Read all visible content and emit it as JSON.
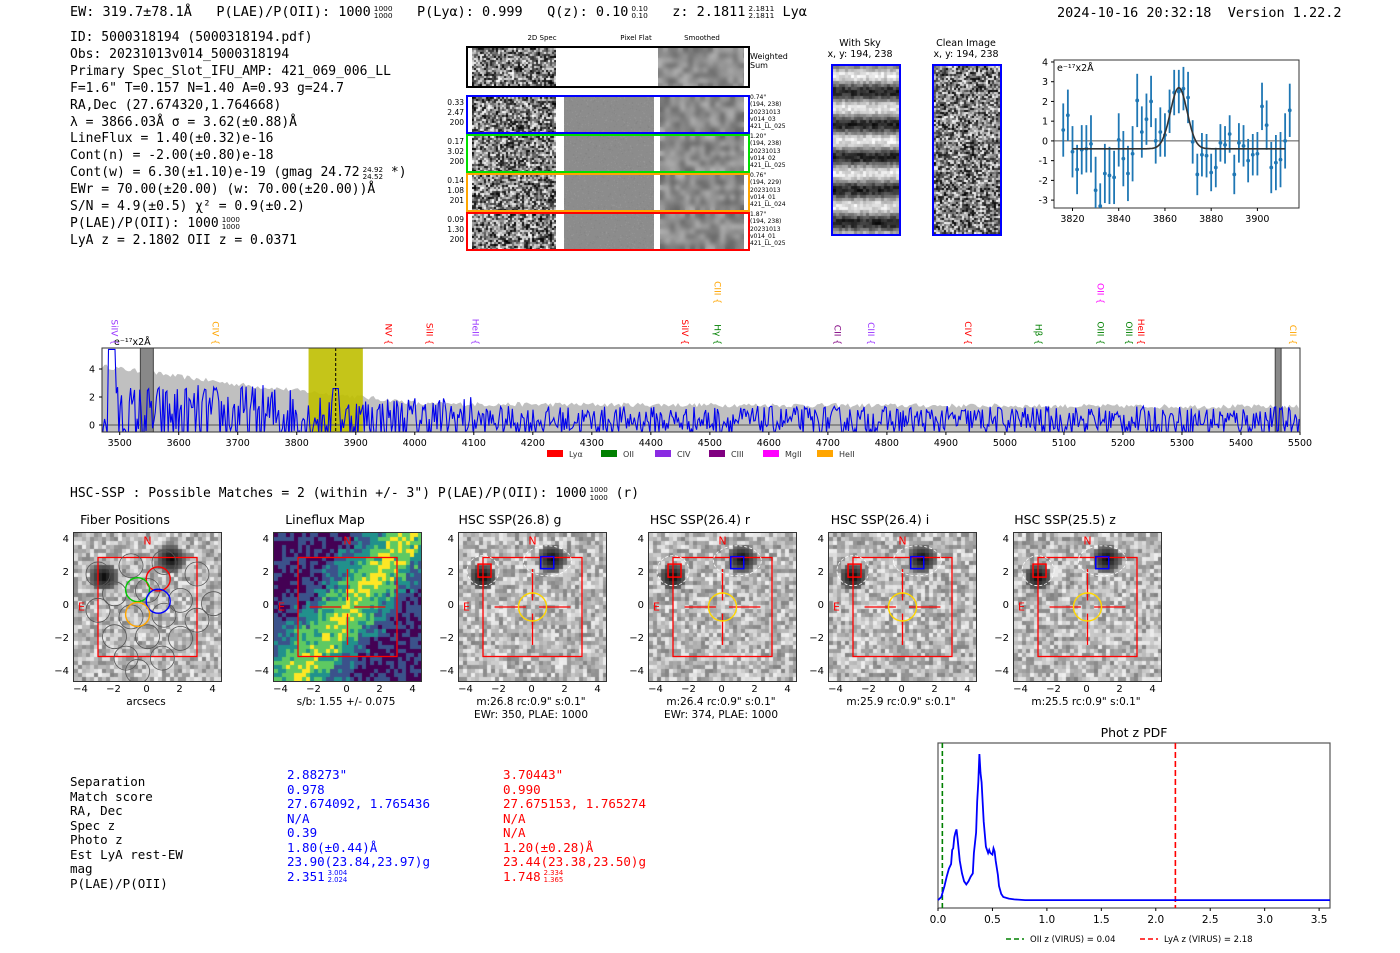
{
  "header": {
    "ew": "EW: 319.7±78.1Å",
    "plae_label": "P(LAE)/P(OII): 1000",
    "plae_hi": "1000",
    "plae_lo": "1000",
    "plya": "P(Lyα): 0.999",
    "qz_label": "Q(z): 0.10",
    "qz_hi": "0.10",
    "qz_lo": "0.10",
    "z_label": "z: 2.1811",
    "z_hi": "2.1811",
    "z_lo": "2.1811",
    "line": "Lyα",
    "timestamp": "2024-10-16 20:32:18",
    "version": "Version 1.22.2"
  },
  "info": {
    "id": "ID: 5000318194 (5000318194.pdf)",
    "obs": "Obs: 20231013v014_5000318194",
    "primary": "Primary Spec_Slot_IFU_AMP: 421_069_006_LL",
    "params": "F=1.6\"  T=0.157  N=1.40  A=0.93  g=24.7",
    "radec": "RA,Dec (27.674320,1.764668)",
    "lambda": "λ = 3866.03Å  σ = 3.62(±0.88)Å",
    "lineflux": "LineFlux = 1.40(±0.32)e-16",
    "cont_n": "Cont(n) = -2.00(±0.80)e-18",
    "cont_w": "Cont(w) = 6.30(±1.10)e-19 (gmag 24.72",
    "cont_w_hi": "24.92",
    "cont_w_lo": "24.52",
    "cont_w_tail": " *)",
    "ewr": "EWr = 70.00(±20.00) (w: 70.00(±20.00))Å",
    "sn": "S/N = 4.9(±0.5)  χ² = 0.9(±0.2)",
    "plae": "P(LAE)/P(OII): 1000",
    "plae_hi": "1000",
    "plae_lo": "1000",
    "z": "LyA z = 2.1802  OII z = 0.0371"
  },
  "spec2d": {
    "col_headers": [
      "2D Spec",
      "Pixel Flat",
      "Smoothed"
    ],
    "weighted_label": "Weighted Sum",
    "rows": [
      {
        "color": "#0000ff",
        "left": [
          "0.33",
          "2.47",
          "200"
        ],
        "right": [
          "0.74\"",
          "(194, 238)",
          "20231013",
          "v014_03",
          "421_LL_025"
        ]
      },
      {
        "color": "#00dd00",
        "left": [
          "0.17",
          "3.02",
          "200"
        ],
        "right": [
          "1.20\"",
          "(194, 238)",
          "20231013",
          "v014_02",
          "421_LL_025"
        ]
      },
      {
        "color": "#ffa500",
        "left": [
          "0.14",
          "1.08",
          "201"
        ],
        "right": [
          "0.76\"",
          "(194, 229)",
          "20231013",
          "v014_01",
          "421_LL_024"
        ]
      },
      {
        "color": "#ff0000",
        "left": [
          "0.09",
          "1.30",
          "200"
        ],
        "right": [
          "1.87\"",
          "(194, 238)",
          "20231013",
          "v014_01",
          "421_LL_025"
        ]
      }
    ]
  },
  "cutouts": {
    "with_sky_title": "With Sky",
    "with_sky_xy": "x, y: 194, 238",
    "clean_title": "Clean Image",
    "clean_xy": "x, y: 194, 238"
  },
  "zoom_plot": {
    "unit_label": "e⁻¹⁷x2Å",
    "chart_data": {
      "type": "scatter",
      "title": "",
      "xlabel": "",
      "ylabel": "",
      "xlim": [
        3812,
        3918
      ],
      "ylim": [
        -3.4,
        4.1
      ],
      "xticks": [
        3820,
        3840,
        3860,
        3880,
        3900
      ],
      "yticks": [
        -3,
        -2,
        -1,
        0,
        1,
        2,
        3,
        4
      ],
      "points": {
        "x": [
          3816,
          3818,
          3820,
          3822,
          3824,
          3826,
          3828,
          3830,
          3832,
          3834,
          3836,
          3838,
          3840,
          3842,
          3844,
          3846,
          3848,
          3850,
          3852,
          3854,
          3856,
          3858,
          3860,
          3862,
          3864,
          3866,
          3868,
          3870,
          3872,
          3874,
          3876,
          3878,
          3880,
          3882,
          3884,
          3886,
          3888,
          3890,
          3892,
          3894,
          3896,
          3898,
          3900,
          3902,
          3904,
          3906,
          3908,
          3910,
          3912,
          3914
        ],
        "y": [
          0.55,
          1.3,
          -0.55,
          -1.45,
          -0.45,
          -0.4,
          -0.15,
          -2.5,
          -3.3,
          -1.65,
          -1.75,
          -1.85,
          0.05,
          -0.9,
          -1.65,
          -0.65,
          2.05,
          0.45,
          1.1,
          2.0,
          0.0,
          0.45,
          0.3,
          1.5,
          2.45,
          2.5,
          2.65,
          2.2,
          -0.05,
          -1.7,
          -0.7,
          -0.75,
          -1.6,
          -1.35,
          -0.1,
          -0.2,
          0.35,
          -1.7,
          -0.1,
          -0.25,
          -1.0,
          -0.7,
          -0.65,
          1.75,
          0.8,
          -1.35,
          -1.1,
          -0.95,
          0.0,
          1.55
        ],
        "err": [
          1.35,
          1.3,
          1.3,
          1.25,
          1.25,
          1.2,
          1.45,
          1.7,
          1.15,
          1.5,
          1.45,
          1.35,
          1.35,
          1.4,
          1.4,
          1.4,
          1.35,
          1.3,
          1.3,
          1.3,
          1.15,
          1.25,
          1.1,
          1.1,
          1.15,
          1.1,
          1.1,
          1.3,
          1.1,
          1.05,
          1.1,
          1.1,
          0.95,
          1.0,
          0.95,
          0.95,
          0.95,
          1.0,
          1.0,
          1.05,
          1.1,
          1.05,
          1.1,
          1.2,
          1.25,
          1.3,
          1.4,
          1.4,
          1.4,
          1.35
        ]
      },
      "model": {
        "name": "gaussian fit",
        "center": 3866,
        "sigma": 3.62,
        "amplitude": 3.1,
        "baseline": -0.4
      }
    }
  },
  "spectrum": {
    "unit_label": "e⁻¹⁷x2Å",
    "chart_data": {
      "type": "line",
      "xlim": [
        3470,
        5500
      ],
      "ylim": [
        -0.5,
        5.5
      ],
      "xticks": [
        3500,
        3600,
        3700,
        3800,
        3900,
        4000,
        4100,
        4200,
        4300,
        4400,
        4500,
        4600,
        4700,
        4800,
        4900,
        5000,
        5100,
        5200,
        5300,
        5400,
        5500
      ],
      "yticks": [
        0,
        2,
        4
      ],
      "highlight_band": [
        3820,
        3912
      ],
      "line_center": 3866,
      "masked_regions": [
        [
          3535,
          3557
        ],
        [
          5458,
          5468
        ]
      ],
      "lines": [
        {
          "label": "SiIV",
          "wave": 3481,
          "color": "#9933ff",
          "row": 1
        },
        {
          "label": "CIV",
          "wave": 3652,
          "color": "#ffa500",
          "row": 1
        },
        {
          "label": "NV",
          "wave": 3945,
          "color": "#ff0000",
          "row": 1
        },
        {
          "label": "SiII",
          "wave": 4015,
          "color": "#ff0000",
          "row": 1
        },
        {
          "label": "HeII",
          "wave": 4093,
          "color": "#9933ff",
          "row": 1
        },
        {
          "label": "SiIV",
          "wave": 4448,
          "color": "#ff0000",
          "row": 1
        },
        {
          "label": "CIII",
          "wave": 4503,
          "color": "#ffa500",
          "row": 0
        },
        {
          "label": "Hγ",
          "wave": 4503,
          "color": "#008000",
          "row": 1
        },
        {
          "label": "CII",
          "wave": 4706,
          "color": "#800080",
          "row": 1
        },
        {
          "label": "CIII",
          "wave": 4763,
          "color": "#9933ff",
          "row": 1
        },
        {
          "label": "CIV",
          "wave": 4927,
          "color": "#ff0000",
          "row": 1
        },
        {
          "label": "Hβ",
          "wave": 5047,
          "color": "#008000",
          "row": 1
        },
        {
          "label": "OII",
          "wave": 5152,
          "color": "#ff00ff",
          "row": 0
        },
        {
          "label": "OIII",
          "wave": 5152,
          "color": "#008000",
          "row": 1
        },
        {
          "label": "OIII",
          "wave": 5200,
          "color": "#008000",
          "row": 1
        },
        {
          "label": "HeII",
          "wave": 5220,
          "color": "#ff0000",
          "row": 1
        },
        {
          "label": "CII",
          "wave": 5478,
          "color": "#ffa500",
          "row": 1
        }
      ],
      "legend": [
        {
          "label": "Lyα",
          "color": "#ff0000"
        },
        {
          "label": "OII",
          "color": "#008000"
        },
        {
          "label": "CIV",
          "color": "#8a2be2"
        },
        {
          "label": "CIII",
          "color": "#800080"
        },
        {
          "label": "MgII",
          "color": "#ff00ff"
        },
        {
          "label": "HeII",
          "color": "#ffa500"
        }
      ]
    }
  },
  "hsc": {
    "summary": "HSC-SSP : Possible Matches = 2 (within +/- 3\")  P(LAE)/P(OII): 1000",
    "summary_hi": "1000",
    "summary_lo": "1000",
    "summary_tail": " (r)",
    "panels": [
      {
        "title": "Fiber Positions",
        "caption1": "arcsecs",
        "caption2": ""
      },
      {
        "title": "Lineflux Map",
        "caption1": "s/b: 1.55 +/- 0.075",
        "caption2": ""
      },
      {
        "title": "HSC SSP(26.8) g",
        "caption1": "m:26.8 rc:0.9\"  s:0.1\"",
        "caption2": "EWr: 350, PLAE: 1000"
      },
      {
        "title": "HSC SSP(26.4) r",
        "caption1": "m:26.4 rc:0.9\"  s:0.1\"",
        "caption2": "EWr: 374, PLAE: 1000"
      },
      {
        "title": "HSC SSP(26.4) i",
        "caption1": "m:25.9 rc:0.9\"  s:0.1\"",
        "caption2": ""
      },
      {
        "title": "HSC SSP(25.5) z",
        "caption1": "m:25.5 rc:0.9\"  s:0.1\"",
        "caption2": ""
      }
    ],
    "axis_ticks": [
      "4",
      "2",
      "0",
      "−2",
      "−4"
    ],
    "x_ticks": [
      "−4",
      "−2",
      "0",
      "2",
      "4"
    ],
    "compass_n": "N",
    "compass_e": "E"
  },
  "matches": {
    "labels": [
      "Separation",
      "Match score",
      "RA, Dec",
      "Spec z",
      "Photo z",
      "Est LyA rest-EW",
      "mag",
      "P(LAE)/P(OII)"
    ],
    "match1": {
      "color": "#0000ff",
      "values": [
        "2.88273\"",
        "0.978",
        "27.674092, 1.765436",
        "N/A",
        "0.39",
        "1.80(±0.44)Å",
        "23.90(23.84,23.97)g",
        "2.351"
      ],
      "plae_hi": "3.004",
      "plae_lo": "2.024"
    },
    "match2": {
      "color": "#ff0000",
      "values": [
        "3.70443\"",
        "0.990",
        "27.675153, 1.765274",
        "N/A",
        "N/A",
        "1.20(±0.28)Å",
        "23.44(23.38,23.50)g",
        "1.748"
      ],
      "plae_hi": "2.334",
      "plae_lo": "1.365"
    }
  },
  "photz": {
    "chart_data": {
      "type": "line",
      "title": "Phot z PDF",
      "xlabel": "",
      "ylabel": "",
      "xlim": [
        0,
        3.6
      ],
      "ylim": [
        0,
        1.05
      ],
      "xticks": [
        0.0,
        0.5,
        1.0,
        1.5,
        2.0,
        2.5,
        3.0,
        3.5
      ],
      "series": [
        {
          "name": "PDF",
          "color": "#0000ff",
          "x": [
            0.0,
            0.03,
            0.06,
            0.08,
            0.1,
            0.12,
            0.13,
            0.14,
            0.15,
            0.16,
            0.17,
            0.18,
            0.2,
            0.22,
            0.24,
            0.26,
            0.28,
            0.3,
            0.32,
            0.33,
            0.35,
            0.36,
            0.37,
            0.38,
            0.39,
            0.4,
            0.41,
            0.42,
            0.44,
            0.46,
            0.47,
            0.48,
            0.5,
            0.51,
            0.52,
            0.53,
            0.55,
            0.56,
            0.58,
            0.6,
            0.65,
            0.7,
            0.8,
            1.0,
            2.0,
            3.6
          ],
          "y": [
            0.05,
            0.07,
            0.14,
            0.2,
            0.25,
            0.28,
            0.37,
            0.38,
            0.45,
            0.48,
            0.5,
            0.44,
            0.3,
            0.22,
            0.17,
            0.15,
            0.17,
            0.2,
            0.22,
            0.35,
            0.48,
            0.68,
            0.8,
            0.98,
            0.86,
            0.8,
            0.68,
            0.55,
            0.39,
            0.35,
            0.37,
            0.35,
            0.34,
            0.38,
            0.36,
            0.3,
            0.21,
            0.14,
            0.09,
            0.07,
            0.06,
            0.055,
            0.05,
            0.05,
            0.05,
            0.05
          ]
        }
      ],
      "vlines": [
        {
          "name": "OII z (VIRUS) = 0.04",
          "x": 0.04,
          "color": "#008000"
        },
        {
          "name": "LyA z (VIRUS) = 2.18",
          "x": 2.18,
          "color": "#ff0000"
        }
      ]
    }
  }
}
